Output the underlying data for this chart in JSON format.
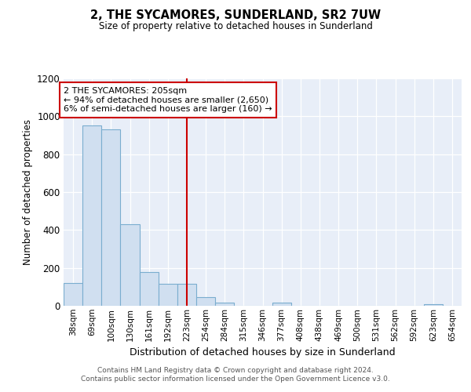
{
  "title": "2, THE SYCAMORES, SUNDERLAND, SR2 7UW",
  "subtitle": "Size of property relative to detached houses in Sunderland",
  "xlabel": "Distribution of detached houses by size in Sunderland",
  "ylabel": "Number of detached properties",
  "categories": [
    "38sqm",
    "69sqm",
    "100sqm",
    "130sqm",
    "161sqm",
    "192sqm",
    "223sqm",
    "254sqm",
    "284sqm",
    "315sqm",
    "346sqm",
    "377sqm",
    "408sqm",
    "438sqm",
    "469sqm",
    "500sqm",
    "531sqm",
    "562sqm",
    "592sqm",
    "623sqm",
    "654sqm"
  ],
  "values": [
    120,
    950,
    930,
    430,
    180,
    115,
    115,
    47,
    18,
    0,
    0,
    18,
    0,
    0,
    0,
    0,
    0,
    0,
    0,
    10,
    0
  ],
  "bar_color": "#d0dff0",
  "bar_edge_color": "#7aadcf",
  "vline_x": 6.0,
  "vline_color": "#cc0000",
  "annotation_text_line1": "2 THE SYCAMORES: 205sqm",
  "annotation_text_line2": "← 94% of detached houses are smaller (2,650)",
  "annotation_text_line3": "6% of semi-detached houses are larger (160) →",
  "annotation_box_edge_color": "#cc0000",
  "ylim": [
    0,
    1200
  ],
  "yticks": [
    0,
    200,
    400,
    600,
    800,
    1000,
    1200
  ],
  "bg_color": "#e8eef8",
  "grid_color": "#c8d4e8",
  "footer_line1": "Contains HM Land Registry data © Crown copyright and database right 2024.",
  "footer_line2": "Contains public sector information licensed under the Open Government Licence v3.0."
}
